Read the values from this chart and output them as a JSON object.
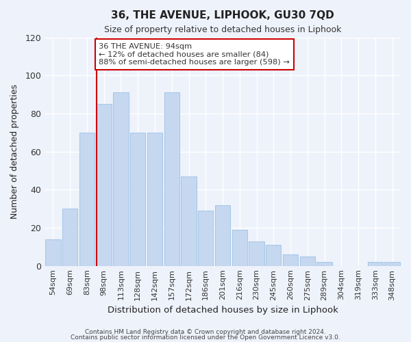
{
  "title": "36, THE AVENUE, LIPHOOK, GU30 7QD",
  "subtitle": "Size of property relative to detached houses in Liphook",
  "xlabel": "Distribution of detached houses by size in Liphook",
  "ylabel": "Number of detached properties",
  "bar_color": "#c5d8f0",
  "bar_edge_color": "#a8c8e8",
  "categories": [
    "54sqm",
    "69sqm",
    "83sqm",
    "98sqm",
    "113sqm",
    "128sqm",
    "142sqm",
    "157sqm",
    "172sqm",
    "186sqm",
    "201sqm",
    "216sqm",
    "230sqm",
    "245sqm",
    "260sqm",
    "275sqm",
    "289sqm",
    "304sqm",
    "319sqm",
    "333sqm",
    "348sqm"
  ],
  "values": [
    14,
    30,
    70,
    85,
    91,
    70,
    70,
    91,
    47,
    29,
    32,
    19,
    13,
    11,
    6,
    5,
    2,
    0,
    0,
    2,
    2
  ],
  "vline_x_index": 3,
  "vline_color": "#cc0000",
  "annotation_title": "36 THE AVENUE: 94sqm",
  "annotation_line1": "← 12% of detached houses are smaller (84)",
  "annotation_line2": "88% of semi-detached houses are larger (598) →",
  "annotation_box_color": "#ffffff",
  "annotation_box_edge": "#cc0000",
  "ylim": [
    0,
    120
  ],
  "yticks": [
    0,
    20,
    40,
    60,
    80,
    100,
    120
  ],
  "footer1": "Contains HM Land Registry data © Crown copyright and database right 2024.",
  "footer2": "Contains public sector information licensed under the Open Government Licence v3.0.",
  "background_color": "#eef2fb",
  "plot_background": "#eef2fb"
}
